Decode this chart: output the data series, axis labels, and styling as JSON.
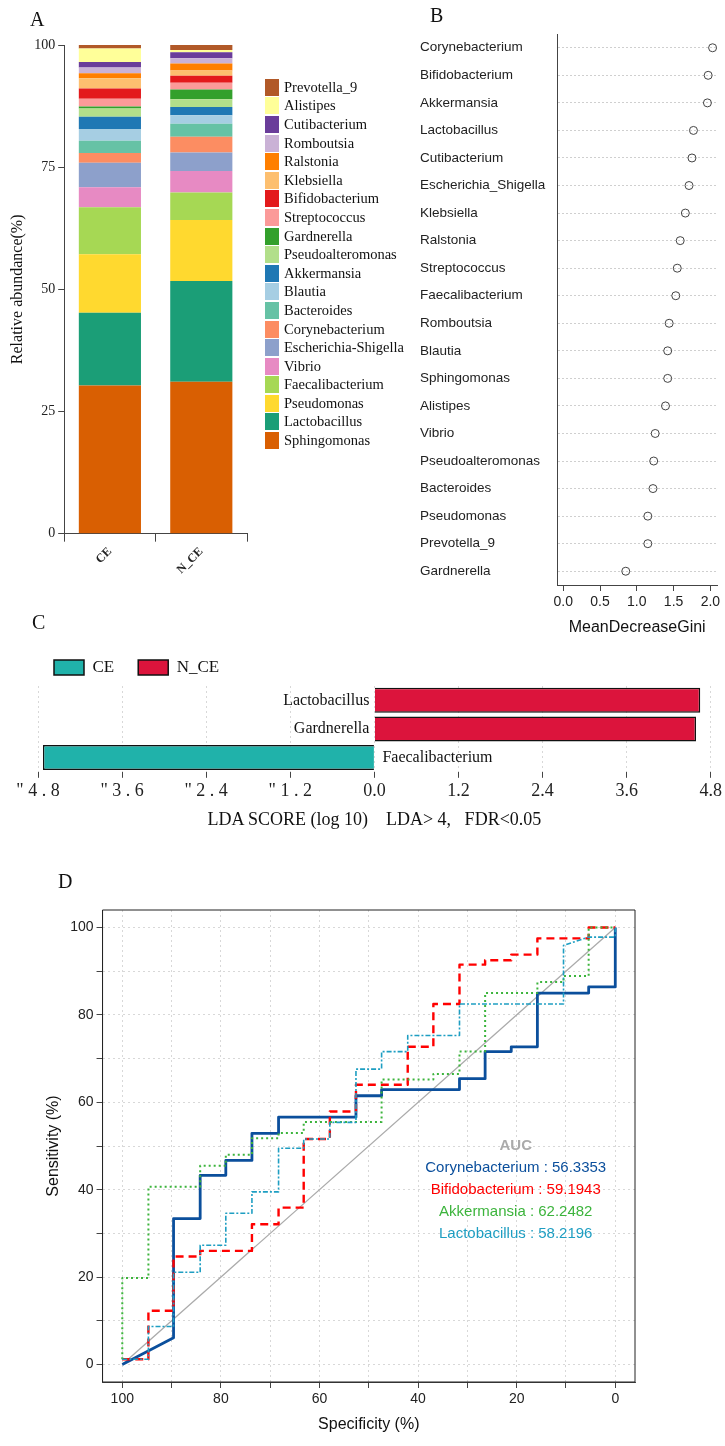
{
  "chart_data": [
    {
      "type": "bar",
      "title": "A",
      "categories": [
        "CE",
        "N_CE"
      ],
      "stacked": true,
      "ylabel": "Relative abundance(%)",
      "ylim": [
        0,
        100
      ],
      "yticks": [
        0,
        25,
        50,
        75,
        100
      ],
      "grid": false,
      "legend": "right",
      "series": [
        {
          "name": "Sphingomonas",
          "color": "#d95f02",
          "values": [
            30.3,
            31.1
          ]
        },
        {
          "name": "Lactobacillus",
          "color": "#1b9e77",
          "values": [
            14.9,
            20.6
          ]
        },
        {
          "name": "Pseudomonas",
          "color": "#ffd92f",
          "values": [
            12.0,
            12.5
          ]
        },
        {
          "name": "Faecalibacterium",
          "color": "#a6d854",
          "values": [
            9.6,
            5.6
          ]
        },
        {
          "name": "Vibrio",
          "color": "#e78ac3",
          "values": [
            4.1,
            4.4
          ]
        },
        {
          "name": "Escherichia-Shigella",
          "color": "#8da0cb",
          "values": [
            5.0,
            3.8
          ]
        },
        {
          "name": "Corynebacterium",
          "color": "#fc8d62",
          "values": [
            2.0,
            3.2
          ]
        },
        {
          "name": "Bacteroides",
          "color": "#66c2a5",
          "values": [
            2.5,
            2.7
          ]
        },
        {
          "name": "Blautia",
          "color": "#a6cee3",
          "values": [
            2.4,
            1.7
          ]
        },
        {
          "name": "Akkermansia",
          "color": "#1f78b4",
          "values": [
            2.5,
            1.7
          ]
        },
        {
          "name": "Pseudoalteromonas",
          "color": "#b2df8a",
          "values": [
            1.7,
            1.6
          ]
        },
        {
          "name": "Gardnerella",
          "color": "#33a02c",
          "values": [
            0.4,
            2.0
          ]
        },
        {
          "name": "Streptococcus",
          "color": "#fb9a99",
          "values": [
            1.6,
            1.4
          ]
        },
        {
          "name": "Bifidobacterium",
          "color": "#e31a1c",
          "values": [
            2.1,
            1.4
          ]
        },
        {
          "name": "Klebsiella",
          "color": "#fdbf6f",
          "values": [
            2.1,
            1.1
          ]
        },
        {
          "name": "Ralstonia",
          "color": "#ff7f00",
          "values": [
            1.0,
            1.4
          ]
        },
        {
          "name": "Romboutsia",
          "color": "#cab2d6",
          "values": [
            1.2,
            1.1
          ]
        },
        {
          "name": "Cutibacterium",
          "color": "#6a3d9a",
          "values": [
            1.1,
            1.2
          ]
        },
        {
          "name": "Alistipes",
          "color": "#ffff99",
          "values": [
            2.8,
            0.5
          ]
        },
        {
          "name": "Prevotella_9",
          "color": "#b15928",
          "values": [
            0.7,
            1.0
          ]
        }
      ]
    },
    {
      "type": "scatter",
      "title": "B",
      "orientation": "horizontal",
      "categories": [
        "Corynebacterium",
        "Bifidobacterium",
        "Akkermansia",
        "Lactobacillus",
        "Cutibacterium",
        "Escherichia_Shigella",
        "Klebsiella",
        "Ralstonia",
        "Streptococcus",
        "Faecalibacterium",
        "Romboutsia",
        "Blautia",
        "Sphingomonas",
        "Alistipes",
        "Vibrio",
        "Pseudoalteromonas",
        "Bacteroides",
        "Pseudomonas",
        "Prevotella_9",
        "Gardnerella"
      ],
      "values": [
        2.03,
        1.97,
        1.96,
        1.77,
        1.75,
        1.71,
        1.66,
        1.59,
        1.55,
        1.53,
        1.44,
        1.42,
        1.42,
        1.39,
        1.25,
        1.23,
        1.22,
        1.15,
        1.15,
        0.85
      ],
      "color": "#444444",
      "marker": "circle",
      "grid": "y",
      "xlim": [
        -0.08,
        2.09
      ],
      "xticks": [
        {
          "value": 0,
          "label": "0.0"
        },
        {
          "value": 0.5,
          "label": "0.5"
        },
        {
          "value": 1,
          "label": "1.0"
        },
        {
          "value": 1.5,
          "label": "1.5"
        },
        {
          "value": 2,
          "label": "2.0"
        }
      ],
      "xlabel": "MeanDecreaseGini"
    },
    {
      "type": "bar",
      "title": "C",
      "orientation": "horizontal",
      "categories": [
        "Lactobacillus",
        "Gardnerella",
        "Faecalibacterium"
      ],
      "legend": "top left",
      "grid": "x",
      "series": [
        {
          "name": "CE",
          "color": "#20b2aa",
          "values": [
            null,
            null,
            -4.73
          ]
        },
        {
          "name": "N_CE",
          "color": "#dc143c",
          "values": [
            4.65,
            4.59,
            null
          ]
        }
      ],
      "xlim": [
        -4.8,
        4.8
      ],
      "xticks": [
        {
          "value": -4.8,
          "label": "\" 4 . 8"
        },
        {
          "value": -3.6,
          "label": "\" 3 . 6"
        },
        {
          "value": -2.4,
          "label": "\" 2 . 4"
        },
        {
          "value": -1.2,
          "label": "\" 1 . 2"
        },
        {
          "value": 0,
          "label": "0.0"
        },
        {
          "value": 1.2,
          "label": "1.2"
        },
        {
          "value": 2.4,
          "label": "2.4"
        },
        {
          "value": 3.6,
          "label": "3.6"
        },
        {
          "value": 4.8,
          "label": "4.8"
        }
      ],
      "xlabel": "LDA SCORE (log 10)    LDA> 4,   FDR<0.05"
    },
    {
      "type": "line",
      "title": "D",
      "grid": true,
      "marker": "none",
      "xlabel": "Specificity (%)",
      "ylabel": "Sensitivity (%)",
      "xlim": [
        104,
        -4
      ],
      "ylim": [
        -4,
        104
      ],
      "xticks": [
        100,
        {
          "value": 90,
          "label": null
        },
        80,
        {
          "value": 70,
          "label": null
        },
        60,
        {
          "value": 50,
          "label": null
        },
        40,
        {
          "value": 30,
          "label": null
        },
        20,
        {
          "value": 10,
          "label": null
        },
        0
      ],
      "yticks": [
        0,
        {
          "value": 10,
          "label": null
        },
        20,
        {
          "value": 30,
          "label": null
        },
        40,
        {
          "value": 50,
          "label": null
        },
        60,
        {
          "value": 70,
          "label": null
        },
        80,
        {
          "value": 90,
          "label": null
        },
        100
      ],
      "annotations": [
        "AUC",
        "Corynebacterium : 56.3353",
        "Bifidobacterium : 59.1943",
        "Akkermansia : 62.2482",
        "Lactobacillus : 58.2196"
      ],
      "series": [
        {
          "color": "#aaaaaa",
          "line_style": "solid",
          "x": [
            100,
            0
          ],
          "values": [
            0,
            100
          ]
        },
        {
          "color": "#0b4f9c",
          "line_style": "solid",
          "x": [
            100,
            89.6,
            89.6,
            84.2,
            84.2,
            79,
            79,
            73.7,
            73.7,
            68.3,
            68.3,
            52.6,
            52.6,
            47.4,
            47.4,
            31.6,
            31.6,
            26.4,
            26.4,
            21.1,
            21.1,
            15.8,
            15.8,
            5.4,
            5.4,
            0,
            0
          ],
          "values": [
            0,
            6.1,
            33.4,
            33.4,
            43.3,
            43.3,
            46.7,
            46.7,
            52.9,
            52.9,
            56.6,
            56.6,
            61.5,
            61.5,
            62.9,
            62.9,
            65.4,
            65.4,
            71.6,
            71.6,
            72.7,
            72.7,
            85.0,
            85.0,
            86.4,
            86.4,
            100
          ]
        },
        {
          "color": "#ff0000",
          "line_style": "dashed",
          "x": [
            100,
            94.7,
            94.7,
            89.6,
            89.6,
            84.2,
            84.2,
            73.7,
            73.7,
            68.3,
            68.3,
            63.2,
            63.2,
            57.9,
            57.9,
            52.6,
            52.6,
            42.1,
            42.1,
            36.9,
            36.9,
            31.6,
            31.6,
            26.4,
            26.4,
            21.1,
            21.1,
            15.8,
            15.8,
            5.4,
            5.4,
            0
          ],
          "values": [
            1.2,
            1.2,
            12.3,
            12.3,
            24.7,
            24.7,
            26.0,
            26.0,
            32.1,
            32.1,
            35.9,
            35.9,
            51.6,
            51.6,
            57.9,
            57.9,
            64.0,
            64.0,
            72.7,
            72.7,
            82.5,
            82.5,
            91.5,
            91.5,
            92.5,
            92.5,
            93.8,
            93.8,
            97.5,
            97.5,
            100,
            100
          ]
        },
        {
          "color": "#3cb43c",
          "line_style": "dotted",
          "x": [
            100,
            100,
            94.7,
            94.7,
            84.2,
            84.2,
            79,
            79,
            73.7,
            73.7,
            68.3,
            68.3,
            63.2,
            63.2,
            47.4,
            47.4,
            36.9,
            36.9,
            31.6,
            31.6,
            26.4,
            26.4,
            15.8,
            15.8,
            10.5,
            10.5,
            5.4,
            5.4,
            0
          ],
          "values": [
            1.2,
            19.8,
            19.8,
            40.7,
            40.7,
            45.5,
            45.5,
            48.0,
            48.0,
            51.8,
            51.8,
            53.0,
            53.0,
            55.5,
            55.5,
            65.2,
            65.2,
            66.5,
            66.5,
            71.6,
            71.6,
            85.0,
            85.0,
            87.5,
            87.5,
            88.9,
            88.9,
            100,
            100
          ]
        },
        {
          "color": "#1e9ec2",
          "line_style": "dashdot",
          "x": [
            100,
            94.7,
            94.7,
            89.6,
            89.6,
            84.2,
            84.2,
            79,
            79,
            73.7,
            73.7,
            68.3,
            68.3,
            63.2,
            63.2,
            57.9,
            57.9,
            52.6,
            52.6,
            47.4,
            47.4,
            42.1,
            42.1,
            31.6,
            31.6,
            10.5,
            10.5,
            5.4,
            0,
            0
          ],
          "values": [
            1.2,
            1.2,
            8.7,
            8.7,
            21.1,
            21.1,
            27.3,
            27.3,
            34.6,
            34.6,
            39.5,
            39.5,
            49.5,
            49.5,
            51.6,
            51.6,
            55.4,
            55.4,
            67.6,
            67.6,
            71.6,
            71.6,
            75.3,
            75.3,
            82.5,
            82.5,
            95.9,
            97.8,
            97.8,
            100
          ]
        }
      ]
    }
  ]
}
